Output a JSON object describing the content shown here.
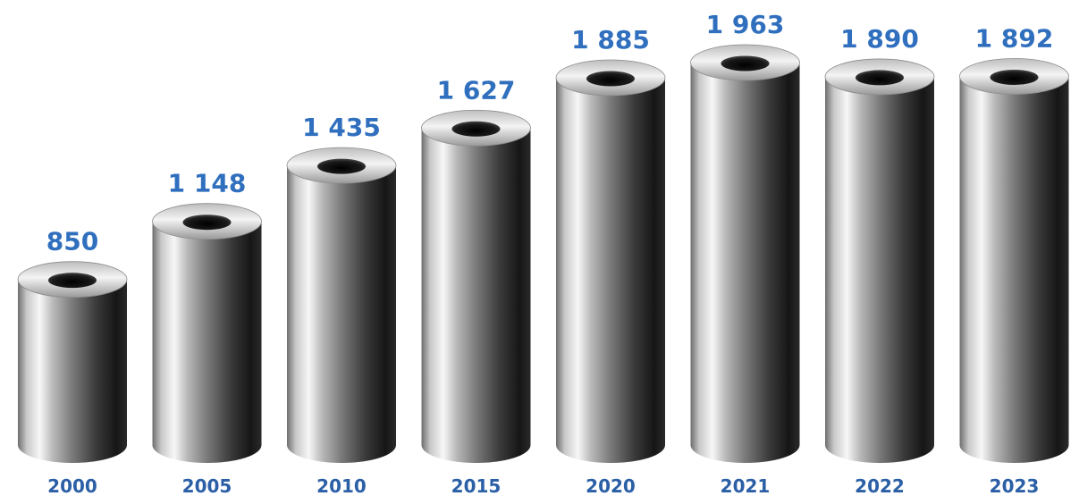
{
  "colors": {
    "value_label": "#2f6fbe",
    "category_label": "#2b5fa6",
    "tube_light": "#f5f5f5",
    "tube_mid": "#8a8a8a",
    "tube_dark": "#111111"
  },
  "chart_data": {
    "type": "bar",
    "style": "3d-tubes",
    "categories": [
      "2000",
      "2005",
      "2010",
      "2015",
      "2020",
      "2021",
      "2022",
      "2023"
    ],
    "values": [
      850,
      1148,
      1435,
      1627,
      1885,
      1963,
      1890,
      1892
    ],
    "value_labels": [
      "850",
      "1 148",
      "1 435",
      "1 627",
      "1 885",
      "1 963",
      "1 890",
      "1 892"
    ],
    "ylim": [
      0,
      1963
    ],
    "grid": false,
    "legend": "none"
  }
}
